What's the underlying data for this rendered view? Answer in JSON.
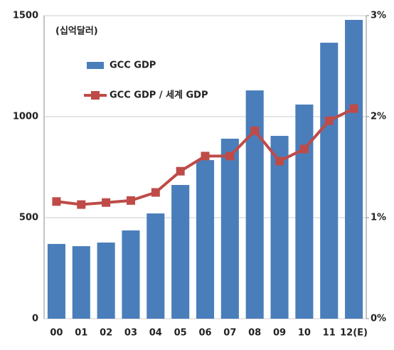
{
  "chart_data": {
    "type": "bar-line",
    "annotation": "(십억달러)",
    "categories": [
      "00",
      "01",
      "02",
      "03",
      "04",
      "05",
      "06",
      "07",
      "08",
      "09",
      "10",
      "11",
      "12(E)"
    ],
    "series": [
      {
        "name": "GCC GDP",
        "type": "bar",
        "color": "#4a7ebb",
        "values": [
          370,
          359,
          377,
          437,
          521,
          662,
          785,
          891,
          1130,
          905,
          1060,
          1366,
          1479
        ]
      },
      {
        "name": "GCC GDP / 세계 GDP",
        "type": "line",
        "axis": "y2",
        "color": "#be4b48",
        "values": [
          1.16,
          1.13,
          1.15,
          1.17,
          1.25,
          1.46,
          1.61,
          1.61,
          1.86,
          1.56,
          1.68,
          1.96,
          2.08
        ]
      }
    ],
    "ylim": [
      0,
      1500
    ],
    "yticks": [
      0,
      500,
      1000,
      1500
    ],
    "y2lim": [
      0,
      3
    ],
    "y2ticks": [
      {
        "value": 0,
        "label": "0%"
      },
      {
        "value": 1,
        "label": "1%"
      },
      {
        "value": 2,
        "label": "2%"
      },
      {
        "value": 3,
        "label": "3%"
      }
    ],
    "grid": true
  }
}
